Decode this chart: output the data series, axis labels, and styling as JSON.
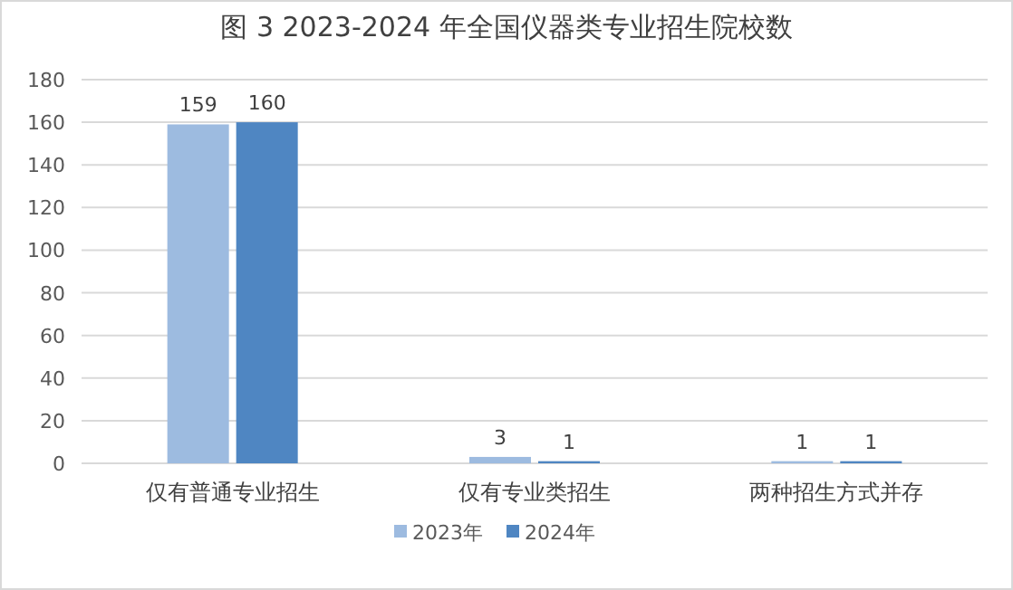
{
  "chart_data": {
    "type": "bar",
    "title": "图 3 2023-2024 年全国仪器类专业招生院校数",
    "categories": [
      "仅有普通专业招生",
      "仅有专业类招生",
      "两种招生方式并存"
    ],
    "series": [
      {
        "name": "2023年",
        "color": "#9dbbe0",
        "values": [
          159,
          3,
          1
        ]
      },
      {
        "name": "2024年",
        "color": "#4f86c2",
        "values": [
          160,
          1,
          1
        ]
      }
    ],
    "ylim": [
      0,
      180
    ],
    "yticks": [
      0,
      20,
      40,
      60,
      80,
      100,
      120,
      140,
      160,
      180
    ],
    "grid": "y",
    "legend": "bottom",
    "data_labels": true
  }
}
